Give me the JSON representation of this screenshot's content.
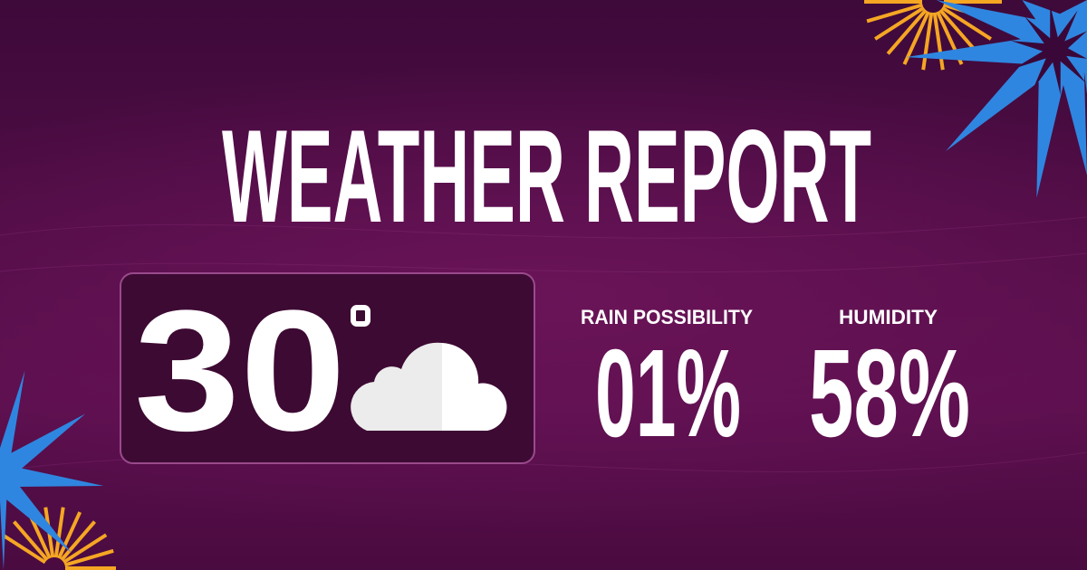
{
  "title": "WEATHER REPORT",
  "temperature": {
    "value": "30",
    "unit_symbol": "°",
    "condition_icon": "cloud-icon"
  },
  "rain": {
    "label": "RAIN POSSIBILITY",
    "value": "01%"
  },
  "humidity": {
    "label": "HUMIDITY",
    "value": "58%"
  },
  "colors": {
    "background": "#4f0c45",
    "card": "#3d0a33",
    "flower": "#2f86e0",
    "burst": "#f5a623",
    "text": "#ffffff"
  }
}
